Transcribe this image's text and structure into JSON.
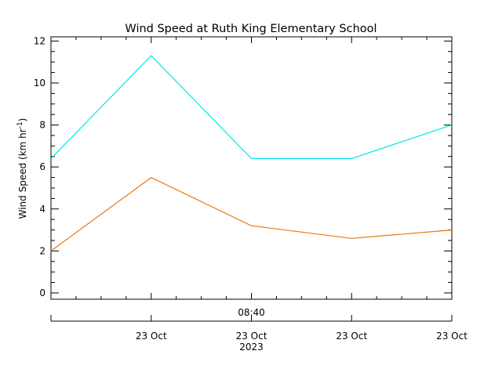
{
  "chart_data": {
    "type": "line",
    "title": "Wind Speed at Ruth King Elementary School",
    "ylabel": "Wind Speed (km hr",
    "ylabel_exponent": "-1",
    "ylabel_close": ")",
    "ylim": [
      -0.3,
      12.2
    ],
    "y_ticks": [
      0,
      2,
      4,
      6,
      8,
      10,
      12
    ],
    "x": [
      0,
      1,
      2,
      3,
      4
    ],
    "x_top_label": "08:40",
    "x_top_label_at": 2,
    "x_tick_positions": [
      1,
      2,
      3,
      4
    ],
    "x_tick_labels": [
      "23 Oct",
      "23 Oct",
      "23 Oct",
      "23 Oct"
    ],
    "x_year_label": "2023",
    "x_year_label_at": 2,
    "grid": false,
    "series": [
      {
        "color": "#00e5ee",
        "values": [
          6.4,
          11.3,
          6.4,
          6.4,
          8.0
        ]
      },
      {
        "color": "#e87810",
        "values": [
          2.0,
          5.5,
          3.2,
          2.6,
          3.0
        ]
      }
    ]
  }
}
